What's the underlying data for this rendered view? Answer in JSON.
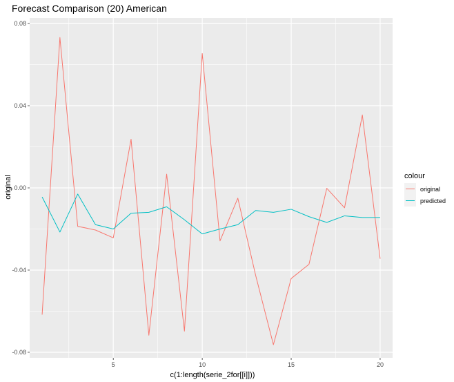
{
  "chart_data": {
    "type": "line",
    "title": "Forecast Comparison (20) American",
    "xlabel": "c(1:length(serie_2for[[i]]))",
    "ylabel": "original",
    "xlim": [
      0.3,
      20.7
    ],
    "ylim": [
      -0.0827,
      0.0827
    ],
    "x_ticks": [
      5,
      10,
      15,
      20
    ],
    "x_tick_labels": [
      "5",
      "10",
      "15",
      "20"
    ],
    "y_ticks": [
      -0.08,
      -0.04,
      0.0,
      0.04,
      0.08
    ],
    "y_tick_labels": [
      "-0.08",
      "-0.04",
      "0.00",
      "0.04",
      "0.08"
    ],
    "grid": true,
    "legend": {
      "title": "colour",
      "position": "right"
    },
    "x": [
      1,
      2,
      3,
      4,
      5,
      6,
      7,
      8,
      9,
      10,
      11,
      12,
      13,
      14,
      15,
      16,
      17,
      18,
      19,
      20
    ],
    "series": [
      {
        "name": "original",
        "color": "#F8766D",
        "values": [
          -0.0617,
          0.0732,
          -0.0187,
          -0.0205,
          -0.0243,
          0.0237,
          -0.0717,
          0.0067,
          -0.0697,
          0.0654,
          -0.0258,
          -0.005,
          -0.0425,
          -0.0763,
          -0.0441,
          -0.0372,
          -0.0002,
          -0.0097,
          0.0355,
          -0.0345
        ]
      },
      {
        "name": "predicted",
        "color": "#00BFC4",
        "values": [
          -0.0044,
          -0.0215,
          -0.003,
          -0.0179,
          -0.02,
          -0.0123,
          -0.0119,
          -0.0092,
          -0.0155,
          -0.0224,
          -0.02,
          -0.0179,
          -0.011,
          -0.0119,
          -0.0104,
          -0.014,
          -0.0168,
          -0.0136,
          -0.0144,
          -0.0144
        ]
      }
    ]
  }
}
